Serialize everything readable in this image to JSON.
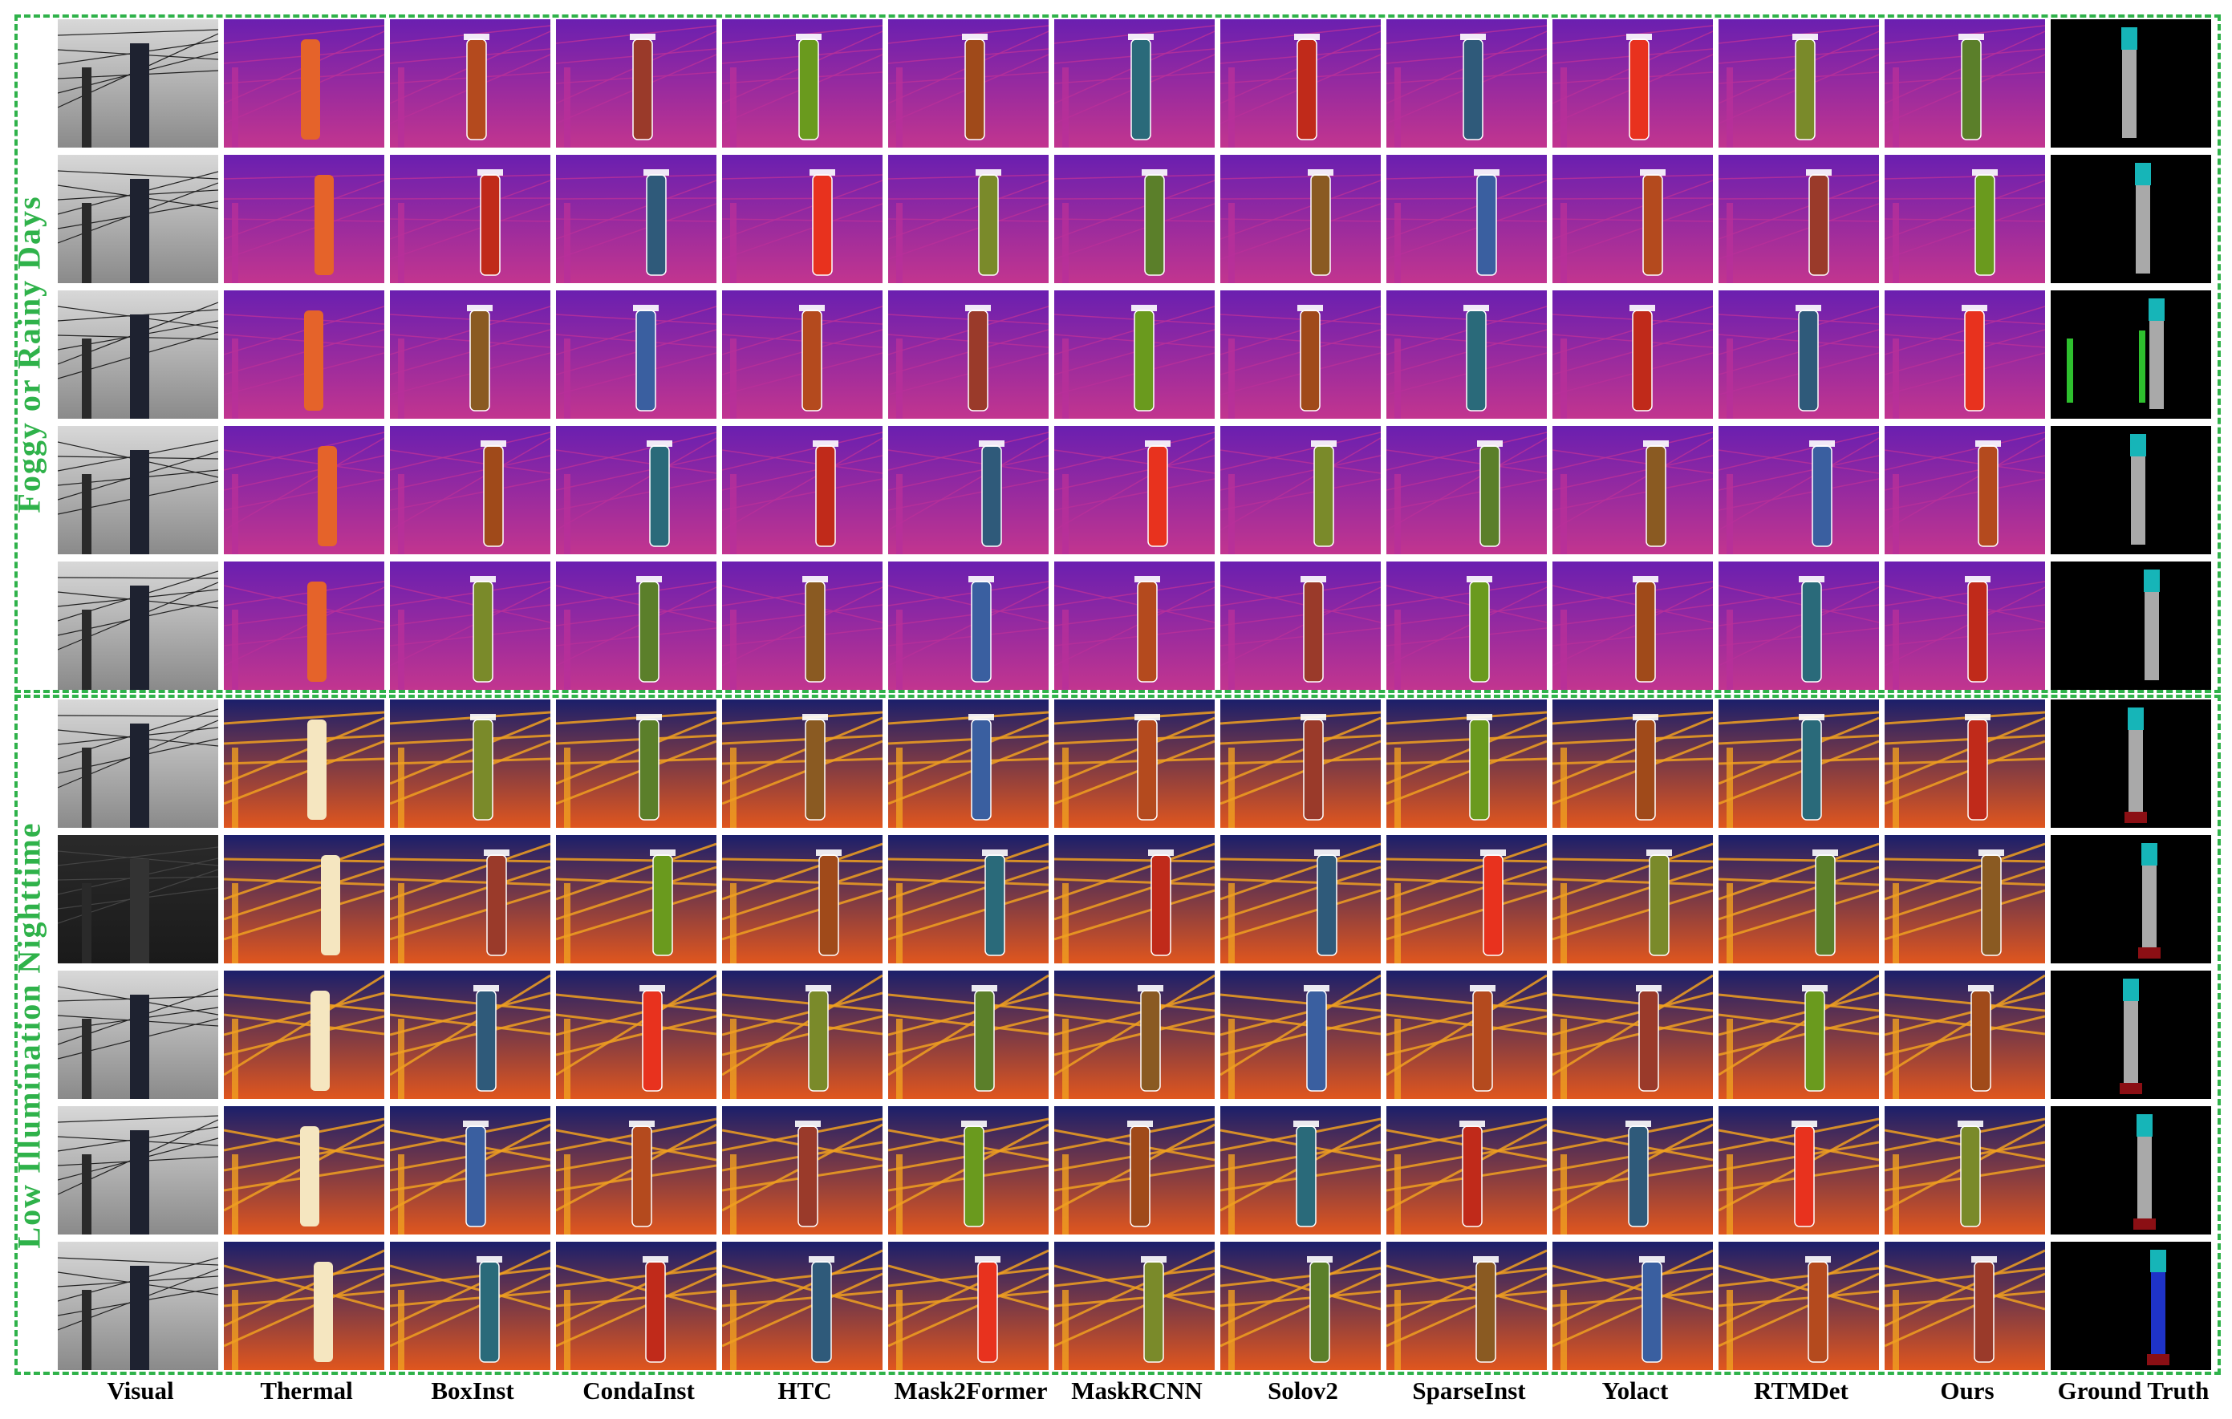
{
  "sections": [
    {
      "label": "Foggy or Rainy Days"
    },
    {
      "label": "Low Illumination Nighttime"
    }
  ],
  "columns": [
    {
      "label": "Visual"
    },
    {
      "label": "Thermal"
    },
    {
      "label": "BoxInst"
    },
    {
      "label": "CondaInst"
    },
    {
      "label": "HTC"
    },
    {
      "label": "Mask2Former"
    },
    {
      "label": "MaskRCNN"
    },
    {
      "label": "Solov2"
    },
    {
      "label": "SparseInst"
    },
    {
      "label": "Yolact"
    },
    {
      "label": "RTMDet"
    },
    {
      "label": "Ours"
    },
    {
      "label": "Ground Truth"
    }
  ],
  "colors": {
    "accent_green": "#2fb24a",
    "thermal_day_top": "#6a1fb0",
    "thermal_day_bottom": "#c2358f",
    "thermal_night_top": "#1b1f6b",
    "thermal_night_bottom": "#e0561e",
    "gt_background": "#000000",
    "gt_cyan": "#16b5b8",
    "gt_gray": "#a9a9a9",
    "gt_green": "#2ec02e",
    "gt_red": "#8b0f14",
    "gt_blue": "#1e33c8"
  }
}
